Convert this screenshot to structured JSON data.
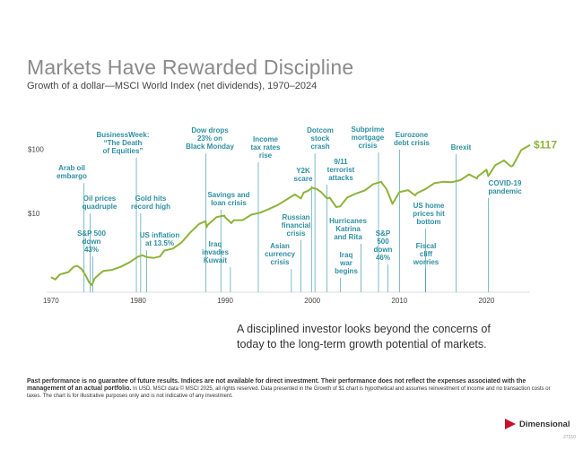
{
  "header": {
    "title": "Markets Have Rewarded Discipline",
    "subtitle": "Growth of a dollar—MSCI World Index (net dividends), 1970–2024"
  },
  "chart_data": {
    "type": "line",
    "title": "Markets Have Rewarded Discipline",
    "subtitle": "Growth of a dollar—MSCI World Index (net dividends), 1970–2024",
    "scale": "log",
    "xlim": [
      1969.5,
      2025
    ],
    "ylim": [
      0.6,
      160
    ],
    "x_ticks": [
      1970,
      1980,
      1990,
      2000,
      2010,
      2020
    ],
    "y_ticks": [
      {
        "value": 10,
        "label": "$10"
      },
      {
        "value": 100,
        "label": "$100"
      }
    ],
    "color": "#8db33a",
    "event_color": "#2e8fa3",
    "end_label": "$117",
    "series": [
      {
        "points": [
          [
            1970.0,
            1.0
          ],
          [
            1970.5,
            0.92
          ],
          [
            1971.0,
            1.1
          ],
          [
            1971.5,
            1.15
          ],
          [
            1972.0,
            1.2
          ],
          [
            1972.6,
            1.45
          ],
          [
            1973.0,
            1.5
          ],
          [
            1973.5,
            1.35
          ],
          [
            1974.0,
            1.05
          ],
          [
            1974.4,
            0.82
          ],
          [
            1974.7,
            0.75
          ],
          [
            1975.0,
            0.95
          ],
          [
            1975.5,
            1.1
          ],
          [
            1976.0,
            1.25
          ],
          [
            1977.0,
            1.3
          ],
          [
            1978.0,
            1.45
          ],
          [
            1979.0,
            1.7
          ],
          [
            1980.0,
            2.1
          ],
          [
            1980.5,
            2.2
          ],
          [
            1981.0,
            2.05
          ],
          [
            1981.8,
            2.0
          ],
          [
            1982.5,
            2.1
          ],
          [
            1983.0,
            2.6
          ],
          [
            1984.0,
            2.8
          ],
          [
            1985.0,
            3.5
          ],
          [
            1986.0,
            5.0
          ],
          [
            1987.0,
            6.8
          ],
          [
            1987.75,
            7.5
          ],
          [
            1987.85,
            6.0
          ],
          [
            1988.0,
            6.6
          ],
          [
            1989.0,
            8.7
          ],
          [
            1989.9,
            9.2
          ],
          [
            1990.0,
            8.6
          ],
          [
            1990.7,
            7.0
          ],
          [
            1991.0,
            7.8
          ],
          [
            1992.0,
            7.8
          ],
          [
            1993.0,
            9.5
          ],
          [
            1994.0,
            10.2
          ],
          [
            1995.0,
            11.6
          ],
          [
            1996.0,
            13.4
          ],
          [
            1997.0,
            16.2
          ],
          [
            1998.0,
            19.7
          ],
          [
            1998.7,
            17.0
          ],
          [
            1999.0,
            21.0
          ],
          [
            1999.5,
            22.5
          ],
          [
            2000.0,
            25.0
          ],
          [
            2000.5,
            24.0
          ],
          [
            2001.0,
            21.5
          ],
          [
            2001.7,
            17.0
          ],
          [
            2002.0,
            17.5
          ],
          [
            2002.75,
            12.5
          ],
          [
            2003.2,
            12.8
          ],
          [
            2004.0,
            17.6
          ],
          [
            2005.0,
            20.3
          ],
          [
            2006.0,
            22.6
          ],
          [
            2007.0,
            28.5
          ],
          [
            2007.9,
            31.0
          ],
          [
            2008.5,
            24.0
          ],
          [
            2009.2,
            14.0
          ],
          [
            2010.0,
            21.4
          ],
          [
            2011.0,
            23.0
          ],
          [
            2011.8,
            19.0
          ],
          [
            2012.0,
            20.5
          ],
          [
            2013.0,
            24.0
          ],
          [
            2014.0,
            29.5
          ],
          [
            2015.0,
            31.0
          ],
          [
            2016.0,
            30.5
          ],
          [
            2017.0,
            33.0
          ],
          [
            2018.0,
            40.5
          ],
          [
            2018.9,
            35.0
          ],
          [
            2019.0,
            37.5
          ],
          [
            2020.0,
            48.0
          ],
          [
            2020.2,
            38.0
          ],
          [
            2021.0,
            56.5
          ],
          [
            2022.0,
            67.0
          ],
          [
            2022.8,
            54.0
          ],
          [
            2023.0,
            55.0
          ],
          [
            2024.0,
            98.0
          ],
          [
            2025.0,
            117.0
          ]
        ]
      }
    ],
    "events": [
      {
        "year": 1973.8,
        "lines": [
          "Arab oil",
          "embargo"
        ]
      },
      {
        "year": 1974.5,
        "lines": [
          "Oil prices",
          "quadruple"
        ]
      },
      {
        "year": 1974.8,
        "lines": [
          "S&P 500",
          "down",
          "43%"
        ]
      },
      {
        "year": 1979.8,
        "lines": [
          "BusinessWeek:",
          "“The Death",
          "of Equities”"
        ]
      },
      {
        "year": 1980.3,
        "lines": [
          "Gold hits",
          "record high"
        ]
      },
      {
        "year": 1981.0,
        "lines": [
          "US inflation",
          "at 13.5%"
        ]
      },
      {
        "year": 1987.8,
        "lines": [
          "Dow drops",
          "23% on",
          "Black Monday"
        ]
      },
      {
        "year": 1989.5,
        "lines": [
          "Savings and",
          "loan crisis"
        ]
      },
      {
        "year": 1990.6,
        "lines": [
          "Iraq",
          "invades",
          "Kuwait"
        ]
      },
      {
        "year": 1993.8,
        "lines": [
          "Income",
          "tax rates",
          "rise"
        ]
      },
      {
        "year": 1997.6,
        "lines": [
          "Asian",
          "currency",
          "crisis"
        ]
      },
      {
        "year": 1998.7,
        "lines": [
          "Russian",
          "financial",
          "crisis"
        ]
      },
      {
        "year": 1999.9,
        "lines": [
          "Y2K",
          "scare"
        ]
      },
      {
        "year": 2000.3,
        "lines": [
          "Dotcom",
          "stock",
          "crash"
        ]
      },
      {
        "year": 2001.7,
        "lines": [
          "9/11",
          "terrorist",
          "attacks"
        ]
      },
      {
        "year": 2003.2,
        "lines": [
          "Iraq",
          "war",
          "begins"
        ]
      },
      {
        "year": 2005.6,
        "lines": [
          "Hurricanes",
          "Katrina",
          "and Rita"
        ]
      },
      {
        "year": 2007.6,
        "lines": [
          "Subprime",
          "mortgage",
          "crisis"
        ]
      },
      {
        "year": 2008.7,
        "lines": [
          "S&P",
          "500",
          "down",
          "46%"
        ]
      },
      {
        "year": 2010.0,
        "lines": [
          "Eurozone",
          "debt crisis"
        ]
      },
      {
        "year": 2013.0,
        "lines": [
          "US home",
          "prices hit",
          "bottom"
        ]
      },
      {
        "year": 2013.0,
        "lines": [
          "Fiscal",
          "cliff",
          "worries"
        ]
      },
      {
        "year": 2016.5,
        "lines": [
          "Brexit"
        ]
      },
      {
        "year": 2020.2,
        "lines": [
          "COVID-19",
          "pandemic"
        ]
      }
    ]
  },
  "tagline": "A disciplined investor looks beyond the concerns of today to the long-term growth potential of markets.",
  "disclaimer": {
    "lead": "Past performance is no guarantee of future results. Indices are not available for direct investment. Their performance does not reflect the expenses associated with the management of an actual portfolio.",
    "body": "In USD. MSCI data © MSCI 2025, all rights reserved. Data presented in the Growth of $1 chart is hypothetical and assumes reinvestment of income and no transaction costs or taxes. The chart is for illustrative purposes only and is not indicative of any investment."
  },
  "logo": {
    "name": "Dimensional",
    "color": "#c8102e"
  },
  "footer_code": "27310"
}
